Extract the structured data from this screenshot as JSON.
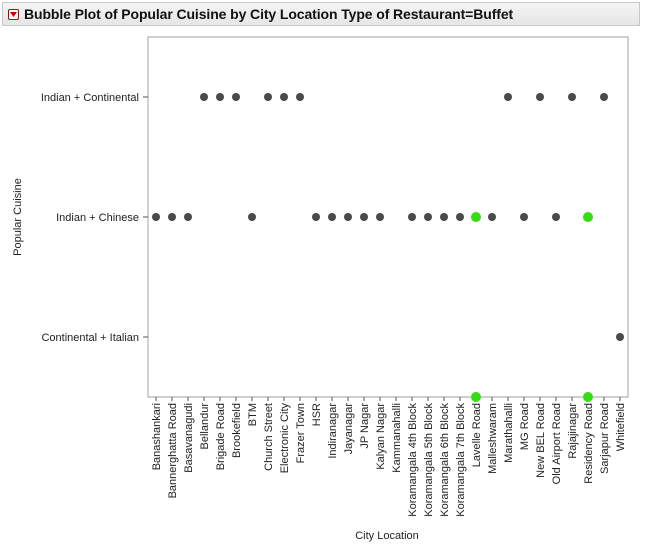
{
  "header": {
    "title": "Bubble Plot of Popular Cuisine by City Location Type of Restaurant=Buffet"
  },
  "colors": {
    "default_point": "#4a4a4a",
    "highlight_point": "#33dd11",
    "frame": "#a0a0a0",
    "title_bar_bg": "#ececec",
    "disclosure": "#c00000"
  },
  "chart_data": {
    "type": "scatter",
    "title": "Bubble Plot of Popular Cuisine by City Location Type of Restaurant=Buffet",
    "xlabel": "City Location",
    "ylabel": "Popular Cuisine",
    "x_categories": [
      "Banashankari",
      "Bannerghatta Road",
      "Basavanagudi",
      "Bellandur",
      "Brigade Road",
      "Brookefield",
      "BTM",
      "Church Street",
      "Electronic City",
      "Frazer Town",
      "HSR",
      "Indiranagar",
      "Jayanagar",
      "JP Nagar",
      "Kalyan Nagar",
      "Kammanahalli",
      "Koramangala 4th Block",
      "Koramangala 5th Block",
      "Koramangala 6th Block",
      "Koramangala 7th Block",
      "Lavelle Road",
      "Malleshwaram",
      "Marathahalli",
      "MG Road",
      "New BEL Road",
      "Old Airport Road",
      "Rajajinagar",
      "Residency Road",
      "Sarjapur Road",
      "Whitefield"
    ],
    "y_categories": [
      "Continental + Italian",
      "Indian + Chinese",
      "Indian + Continental"
    ],
    "grid": false,
    "points": [
      {
        "x": "Bellandur",
        "y": "Indian + Continental",
        "highlight": false
      },
      {
        "x": "Brigade Road",
        "y": "Indian + Continental",
        "highlight": false
      },
      {
        "x": "Brookefield",
        "y": "Indian + Continental",
        "highlight": false
      },
      {
        "x": "Church Street",
        "y": "Indian + Continental",
        "highlight": false
      },
      {
        "x": "Electronic City",
        "y": "Indian + Continental",
        "highlight": false
      },
      {
        "x": "Frazer Town",
        "y": "Indian + Continental",
        "highlight": false
      },
      {
        "x": "Marathahalli",
        "y": "Indian + Continental",
        "highlight": false
      },
      {
        "x": "New BEL Road",
        "y": "Indian + Continental",
        "highlight": false
      },
      {
        "x": "Rajajinagar",
        "y": "Indian + Continental",
        "highlight": false
      },
      {
        "x": "Sarjapur Road",
        "y": "Indian + Continental",
        "highlight": false
      },
      {
        "x": "Banashankari",
        "y": "Indian + Chinese",
        "highlight": false
      },
      {
        "x": "Bannerghatta Road",
        "y": "Indian + Chinese",
        "highlight": false
      },
      {
        "x": "Basavanagudi",
        "y": "Indian + Chinese",
        "highlight": false
      },
      {
        "x": "BTM",
        "y": "Indian + Chinese",
        "highlight": false
      },
      {
        "x": "HSR",
        "y": "Indian + Chinese",
        "highlight": false
      },
      {
        "x": "Indiranagar",
        "y": "Indian + Chinese",
        "highlight": false
      },
      {
        "x": "Jayanagar",
        "y": "Indian + Chinese",
        "highlight": false
      },
      {
        "x": "JP Nagar",
        "y": "Indian + Chinese",
        "highlight": false
      },
      {
        "x": "Kalyan Nagar",
        "y": "Indian + Chinese",
        "highlight": false
      },
      {
        "x": "Koramangala 4th Block",
        "y": "Indian + Chinese",
        "highlight": false
      },
      {
        "x": "Koramangala 5th Block",
        "y": "Indian + Chinese",
        "highlight": false
      },
      {
        "x": "Koramangala 6th Block",
        "y": "Indian + Chinese",
        "highlight": false
      },
      {
        "x": "Koramangala 7th Block",
        "y": "Indian + Chinese",
        "highlight": false
      },
      {
        "x": "Lavelle Road",
        "y": "Indian + Chinese",
        "highlight": true
      },
      {
        "x": "Malleshwaram",
        "y": "Indian + Chinese",
        "highlight": false
      },
      {
        "x": "MG Road",
        "y": "Indian + Chinese",
        "highlight": false
      },
      {
        "x": "Old Airport Road",
        "y": "Indian + Chinese",
        "highlight": false
      },
      {
        "x": "Residency Road",
        "y": "Indian + Chinese",
        "highlight": true
      },
      {
        "x": "Whitefield",
        "y": "Continental + Italian",
        "highlight": false
      }
    ],
    "x_axis_markers": [
      {
        "x": "Lavelle Road",
        "highlight": true
      },
      {
        "x": "Residency Road",
        "highlight": true
      }
    ]
  }
}
